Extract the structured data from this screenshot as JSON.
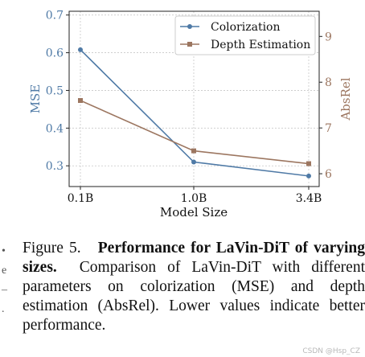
{
  "chart_data": {
    "type": "line",
    "xlabel": "Model Size",
    "categories": [
      "0.1B",
      "1.0B",
      "3.4B"
    ],
    "left_axis": {
      "label": "MSE",
      "ticks": [
        0.3,
        0.4,
        0.5,
        0.6,
        0.7
      ],
      "range": [
        0.245,
        0.71
      ],
      "color": "#4f7aa6"
    },
    "right_axis": {
      "label": "AbsRel",
      "ticks": [
        6,
        7,
        8,
        9
      ],
      "range": [
        5.72,
        9.55
      ],
      "color": "#9c7660"
    },
    "series": [
      {
        "name": "Colorization",
        "axis": "left",
        "values": [
          0.608,
          0.31,
          0.273
        ],
        "color": "#4f7aa6",
        "marker": "circle"
      },
      {
        "name": "Depth Estimation",
        "axis": "right",
        "values": [
          7.6,
          6.5,
          6.22
        ],
        "color": "#9c7660",
        "marker": "square"
      }
    ],
    "grid": true,
    "legend": "top-right"
  },
  "caption": {
    "label": "Figure 5.",
    "title": "Performance for LaVin-DiT of varying sizes.",
    "text": "Comparison of LaVin-DiT with different parameters on colorization (MSE) and depth estimation (AbsRel). Lower values indicate better performance."
  },
  "margin_glyphs": [
    "•",
    "e",
    "–",
    "."
  ],
  "watermark": "CSDN @Hsp_CZ"
}
